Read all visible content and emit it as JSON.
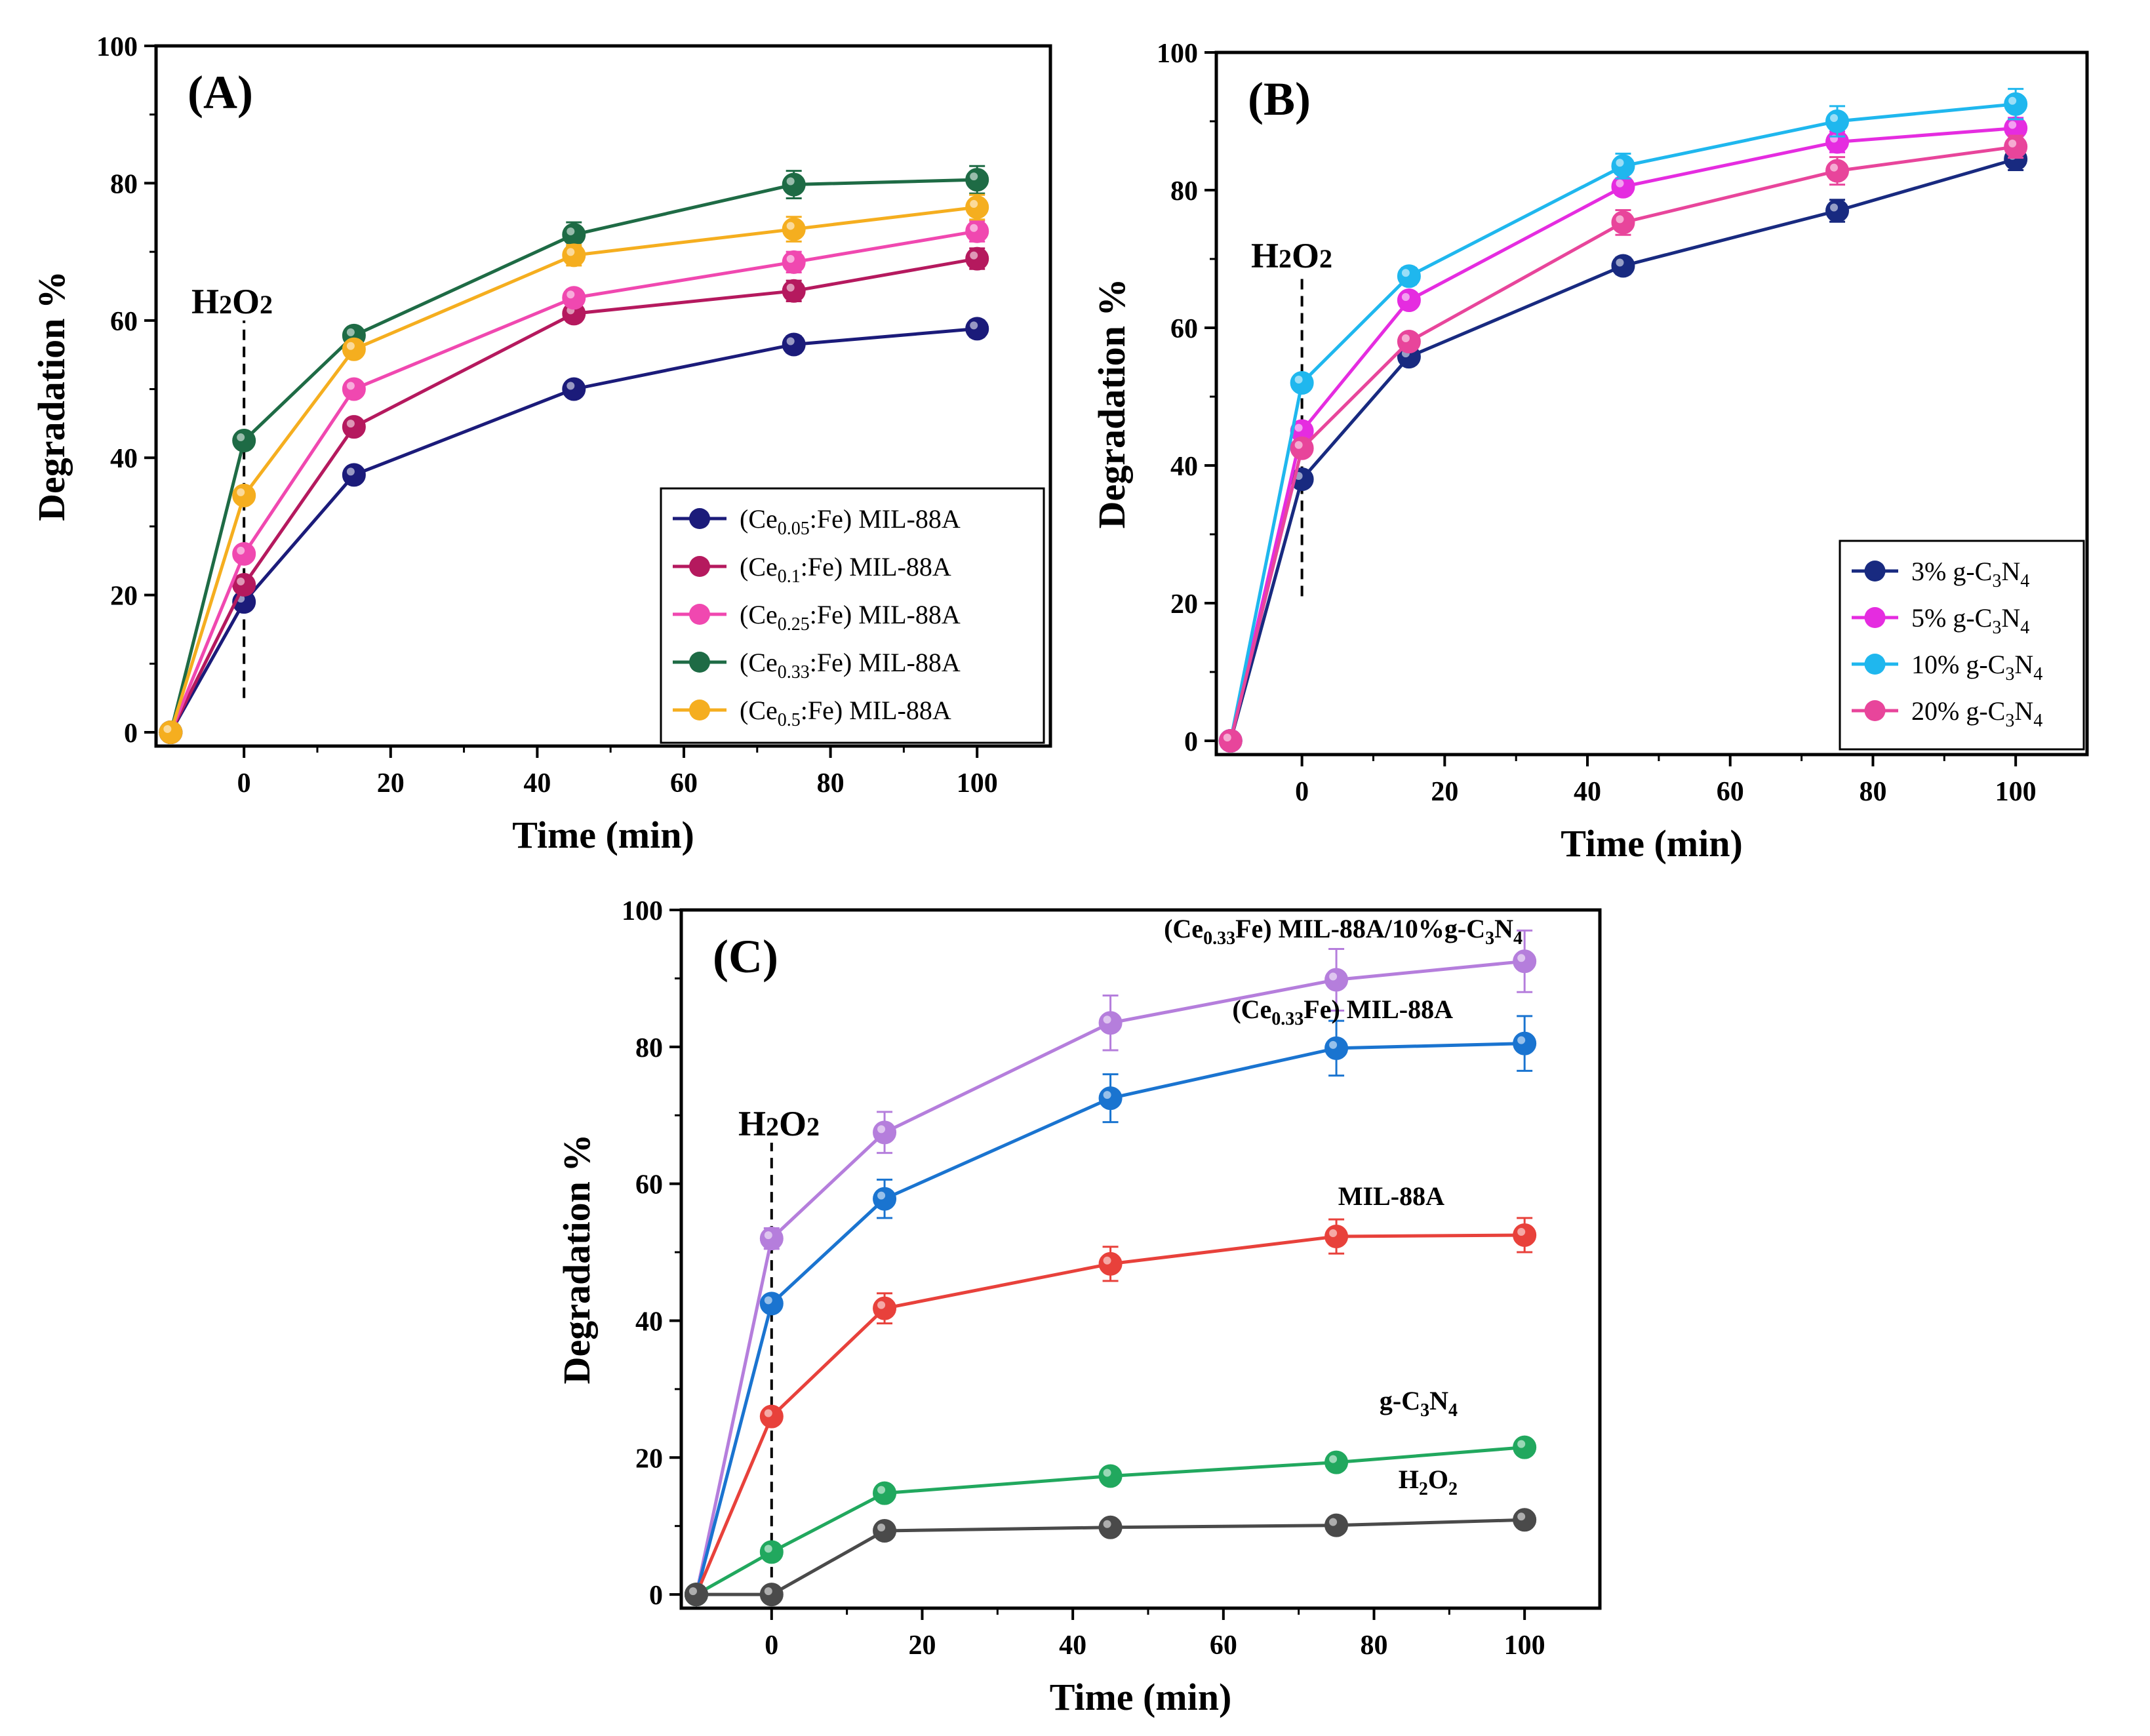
{
  "colors": {
    "navy": "#1B1B7A",
    "crimson": "#B5195E",
    "pink": "#F048B0",
    "green": "#1E6B45",
    "orange": "#F5AE1F",
    "b_navy": "#182A80",
    "b_magenta": "#E52CE0",
    "b_cyan": "#1FB7EE",
    "b_pink": "#E8459B",
    "c_purple": "#B57EDC",
    "c_blue": "#1A74D0",
    "c_red": "#E8413B",
    "c_green": "#21A85E",
    "c_gray": "#4A4A4A"
  },
  "chart_data": [
    {
      "panel": "(A)",
      "type": "line",
      "xlabel": "Time (min)",
      "ylabel": "Degradation %",
      "xlim": [
        -12,
        110
      ],
      "ylim": [
        -2,
        100
      ],
      "xticks": [
        0,
        20,
        40,
        60,
        80,
        100
      ],
      "yticks": [
        0,
        20,
        40,
        60,
        80,
        100
      ],
      "x": [
        -10,
        0,
        15,
        45,
        75,
        100
      ],
      "marker_label": {
        "text": "H2O2",
        "base": "H",
        "sub": "2",
        "tail": "O",
        "sub2": "2"
      },
      "marker_x": 0,
      "marker_y_range": [
        5,
        60
      ],
      "legend_position": "bottom-right",
      "series": [
        {
          "name": "(Ce0.05:Fe) MIL-88A",
          "label_pre": "(Ce",
          "label_sub": "0.05",
          "label_post": ":Fe) MIL-88A",
          "color_key": "navy",
          "values": [
            0,
            19,
            37.5,
            50,
            56.5,
            58.8
          ],
          "errors": [
            0,
            0.8,
            1,
            1,
            1.2,
            1.2
          ]
        },
        {
          "name": "(Ce0.1:Fe) MIL-88A",
          "label_pre": "(Ce",
          "label_sub": "0.1",
          "label_post": ":Fe) MIL-88A",
          "color_key": "crimson",
          "values": [
            0,
            21.5,
            44.5,
            61,
            64.3,
            69
          ],
          "errors": [
            0,
            0.8,
            1,
            1.2,
            1.5,
            1.5
          ]
        },
        {
          "name": "(Ce0.25:Fe) MIL-88A",
          "label_pre": "(Ce",
          "label_sub": "0.25",
          "label_post": ":Fe) MIL-88A",
          "color_key": "pink",
          "values": [
            0,
            26,
            50,
            63.3,
            68.5,
            73
          ],
          "errors": [
            0,
            0.8,
            1,
            1.2,
            1.5,
            1.5
          ]
        },
        {
          "name": "(Ce0.33:Fe) MIL-88A",
          "label_pre": "(Ce",
          "label_sub": "0.33",
          "label_post": ":Fe) MIL-88A",
          "color_key": "green",
          "values": [
            0,
            42.5,
            57.8,
            72.5,
            79.8,
            80.5
          ],
          "errors": [
            0,
            0.8,
            1,
            1.8,
            2,
            2
          ]
        },
        {
          "name": "(Ce0.5:Fe) MIL-88A",
          "label_pre": "(Ce",
          "label_sub": "0.5",
          "label_post": ":Fe) MIL-88A",
          "color_key": "orange",
          "values": [
            0,
            34.5,
            55.8,
            69.5,
            73.3,
            76.5
          ],
          "errors": [
            0,
            0.8,
            1,
            1.5,
            1.8,
            1.8
          ]
        }
      ]
    },
    {
      "panel": "(B)",
      "type": "line",
      "xlabel": "Time (min)",
      "ylabel": "Degradation %",
      "xlim": [
        -12,
        110
      ],
      "ylim": [
        -2,
        100
      ],
      "xticks": [
        0,
        20,
        40,
        60,
        80,
        100
      ],
      "yticks": [
        0,
        20,
        40,
        60,
        80,
        100
      ],
      "x": [
        -10,
        0,
        15,
        45,
        75,
        100
      ],
      "marker_label": {
        "text": "H2O2",
        "base": "H",
        "sub": "2",
        "tail": "O",
        "sub2": "2"
      },
      "marker_x": 0,
      "marker_y_range": [
        21,
        68
      ],
      "legend_position": "bottom-right",
      "series": [
        {
          "name": "3% g-C3N4",
          "label_pre": "3% g-C",
          "label_sub": "3",
          "label_post": "N",
          "label_sub2": "4",
          "color_key": "b_navy",
          "values": [
            0,
            38,
            55.8,
            69,
            77,
            84.5
          ],
          "errors": [
            0,
            0.8,
            1,
            1.2,
            1.6,
            1.6
          ]
        },
        {
          "name": "5% g-C3N4",
          "label_pre": "5% g-C",
          "label_sub": "3",
          "label_post": "N",
          "label_sub2": "4",
          "color_key": "b_magenta",
          "values": [
            0,
            45,
            64,
            80.5,
            87,
            89
          ],
          "errors": [
            0,
            0.8,
            1,
            1.2,
            1.5,
            1.5
          ]
        },
        {
          "name": "10% g-C3N4",
          "label_pre": "10% g-C",
          "label_sub": "3",
          "label_post": "N",
          "label_sub2": "4",
          "color_key": "b_cyan",
          "values": [
            0,
            52,
            67.5,
            83.5,
            90,
            92.5
          ],
          "errors": [
            0,
            0.8,
            1.2,
            1.8,
            2.2,
            2.2
          ]
        },
        {
          "name": "20% g-C3N4",
          "label_pre": "20% g-C",
          "label_sub": "3",
          "label_post": "N",
          "label_sub2": "4",
          "color_key": "b_pink",
          "values": [
            0,
            42.5,
            58,
            75.3,
            82.8,
            86.3
          ],
          "errors": [
            0,
            0.8,
            1,
            1.8,
            2,
            1.6
          ]
        }
      ]
    },
    {
      "panel": "(C)",
      "type": "line",
      "xlabel": "Time (min)",
      "ylabel": "Degradation %",
      "xlim": [
        -12,
        110
      ],
      "ylim": [
        -2,
        100
      ],
      "xticks": [
        0,
        20,
        40,
        60,
        80,
        100
      ],
      "yticks": [
        0,
        20,
        40,
        60,
        80,
        100
      ],
      "x": [
        -10,
        0,
        15,
        45,
        75,
        100
      ],
      "marker_label": {
        "text": "H2O2",
        "base": "H",
        "sub": "2",
        "tail": "O",
        "sub2": "2"
      },
      "marker_x": 0,
      "marker_y_range": [
        0,
        66
      ],
      "legend_position": "inline annotations",
      "series": [
        {
          "name": "(Ce0.33Fe) MIL-88A/10%g-C3N4",
          "color_key": "c_purple",
          "values": [
            0,
            52,
            67.5,
            83.5,
            89.8,
            92.5
          ],
          "errors": [
            0,
            1.5,
            3,
            4,
            4.5,
            4.5
          ],
          "annotation": {
            "pre": "(Ce",
            "sub": "0.33",
            "mid": "Fe) MIL-88A/10%g-C",
            "sub2": "3",
            "post": "N",
            "sub3": "4"
          }
        },
        {
          "name": "(Ce0.33Fe) MIL-88A",
          "color_key": "c_blue",
          "values": [
            0,
            42.5,
            57.8,
            72.5,
            79.8,
            80.5
          ],
          "errors": [
            0,
            1,
            2.8,
            3.5,
            4,
            4
          ],
          "annotation": {
            "pre": "(Ce",
            "sub": "0.33",
            "mid": "Fe) MIL-88A",
            "sub2": "",
            "post": "",
            "sub3": ""
          }
        },
        {
          "name": "MIL-88A",
          "color_key": "c_red",
          "values": [
            0,
            26,
            41.8,
            48.3,
            52.3,
            52.5
          ],
          "errors": [
            0,
            1,
            2.2,
            2.5,
            2.5,
            2.5
          ],
          "annotation": {
            "pre": "MIL-88A",
            "sub": "",
            "mid": "",
            "sub2": "",
            "post": "",
            "sub3": ""
          }
        },
        {
          "name": "g-C3N4",
          "color_key": "c_green",
          "values": [
            0,
            6.2,
            14.8,
            17.3,
            19.3,
            21.5
          ],
          "errors": [
            0,
            0.5,
            0.5,
            0.5,
            0.5,
            0.5
          ],
          "annotation": {
            "pre": "g-C",
            "sub": "3",
            "mid": "N",
            "sub2": "4",
            "post": "",
            "sub3": ""
          }
        },
        {
          "name": "H2O2",
          "color_key": "c_gray",
          "values": [
            0,
            0,
            9.3,
            9.8,
            10.1,
            10.9
          ],
          "errors": [
            0,
            0.3,
            0.4,
            0.4,
            0.4,
            0.4
          ],
          "annotation": {
            "pre": "H",
            "sub": "2",
            "mid": "O",
            "sub2": "2",
            "post": "",
            "sub3": ""
          }
        }
      ]
    }
  ]
}
